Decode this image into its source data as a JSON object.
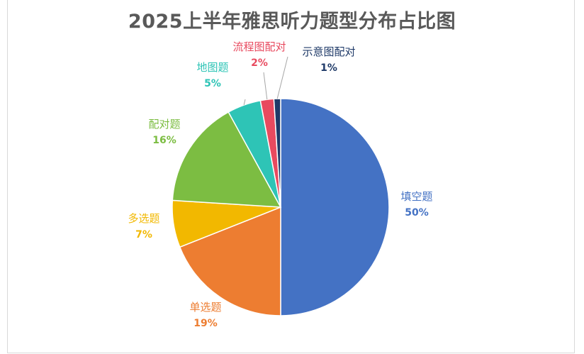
{
  "chart_data": {
    "type": "pie",
    "title": "2025上半年雅思听力题型分布占比图",
    "slices": [
      {
        "label": "填空题",
        "value": 50,
        "display": "50%",
        "color": "#4472C4"
      },
      {
        "label": "单选题",
        "value": 19,
        "display": "19%",
        "color": "#ED7D31"
      },
      {
        "label": "多选题",
        "value": 7,
        "display": "7%",
        "color": "#F2B800"
      },
      {
        "label": "配对题",
        "value": 16,
        "display": "16%",
        "color": "#7CBD42"
      },
      {
        "label": "地图题",
        "value": 5,
        "display": "5%",
        "color": "#2EC4B6"
      },
      {
        "label": "流程图配对",
        "value": 2,
        "display": "2%",
        "color": "#E84A5F"
      },
      {
        "label": "示意图配对",
        "value": 1,
        "display": "1%",
        "color": "#1F3A68"
      }
    ],
    "legend": "none",
    "start_angle": "12 o'clock, clockwise"
  }
}
